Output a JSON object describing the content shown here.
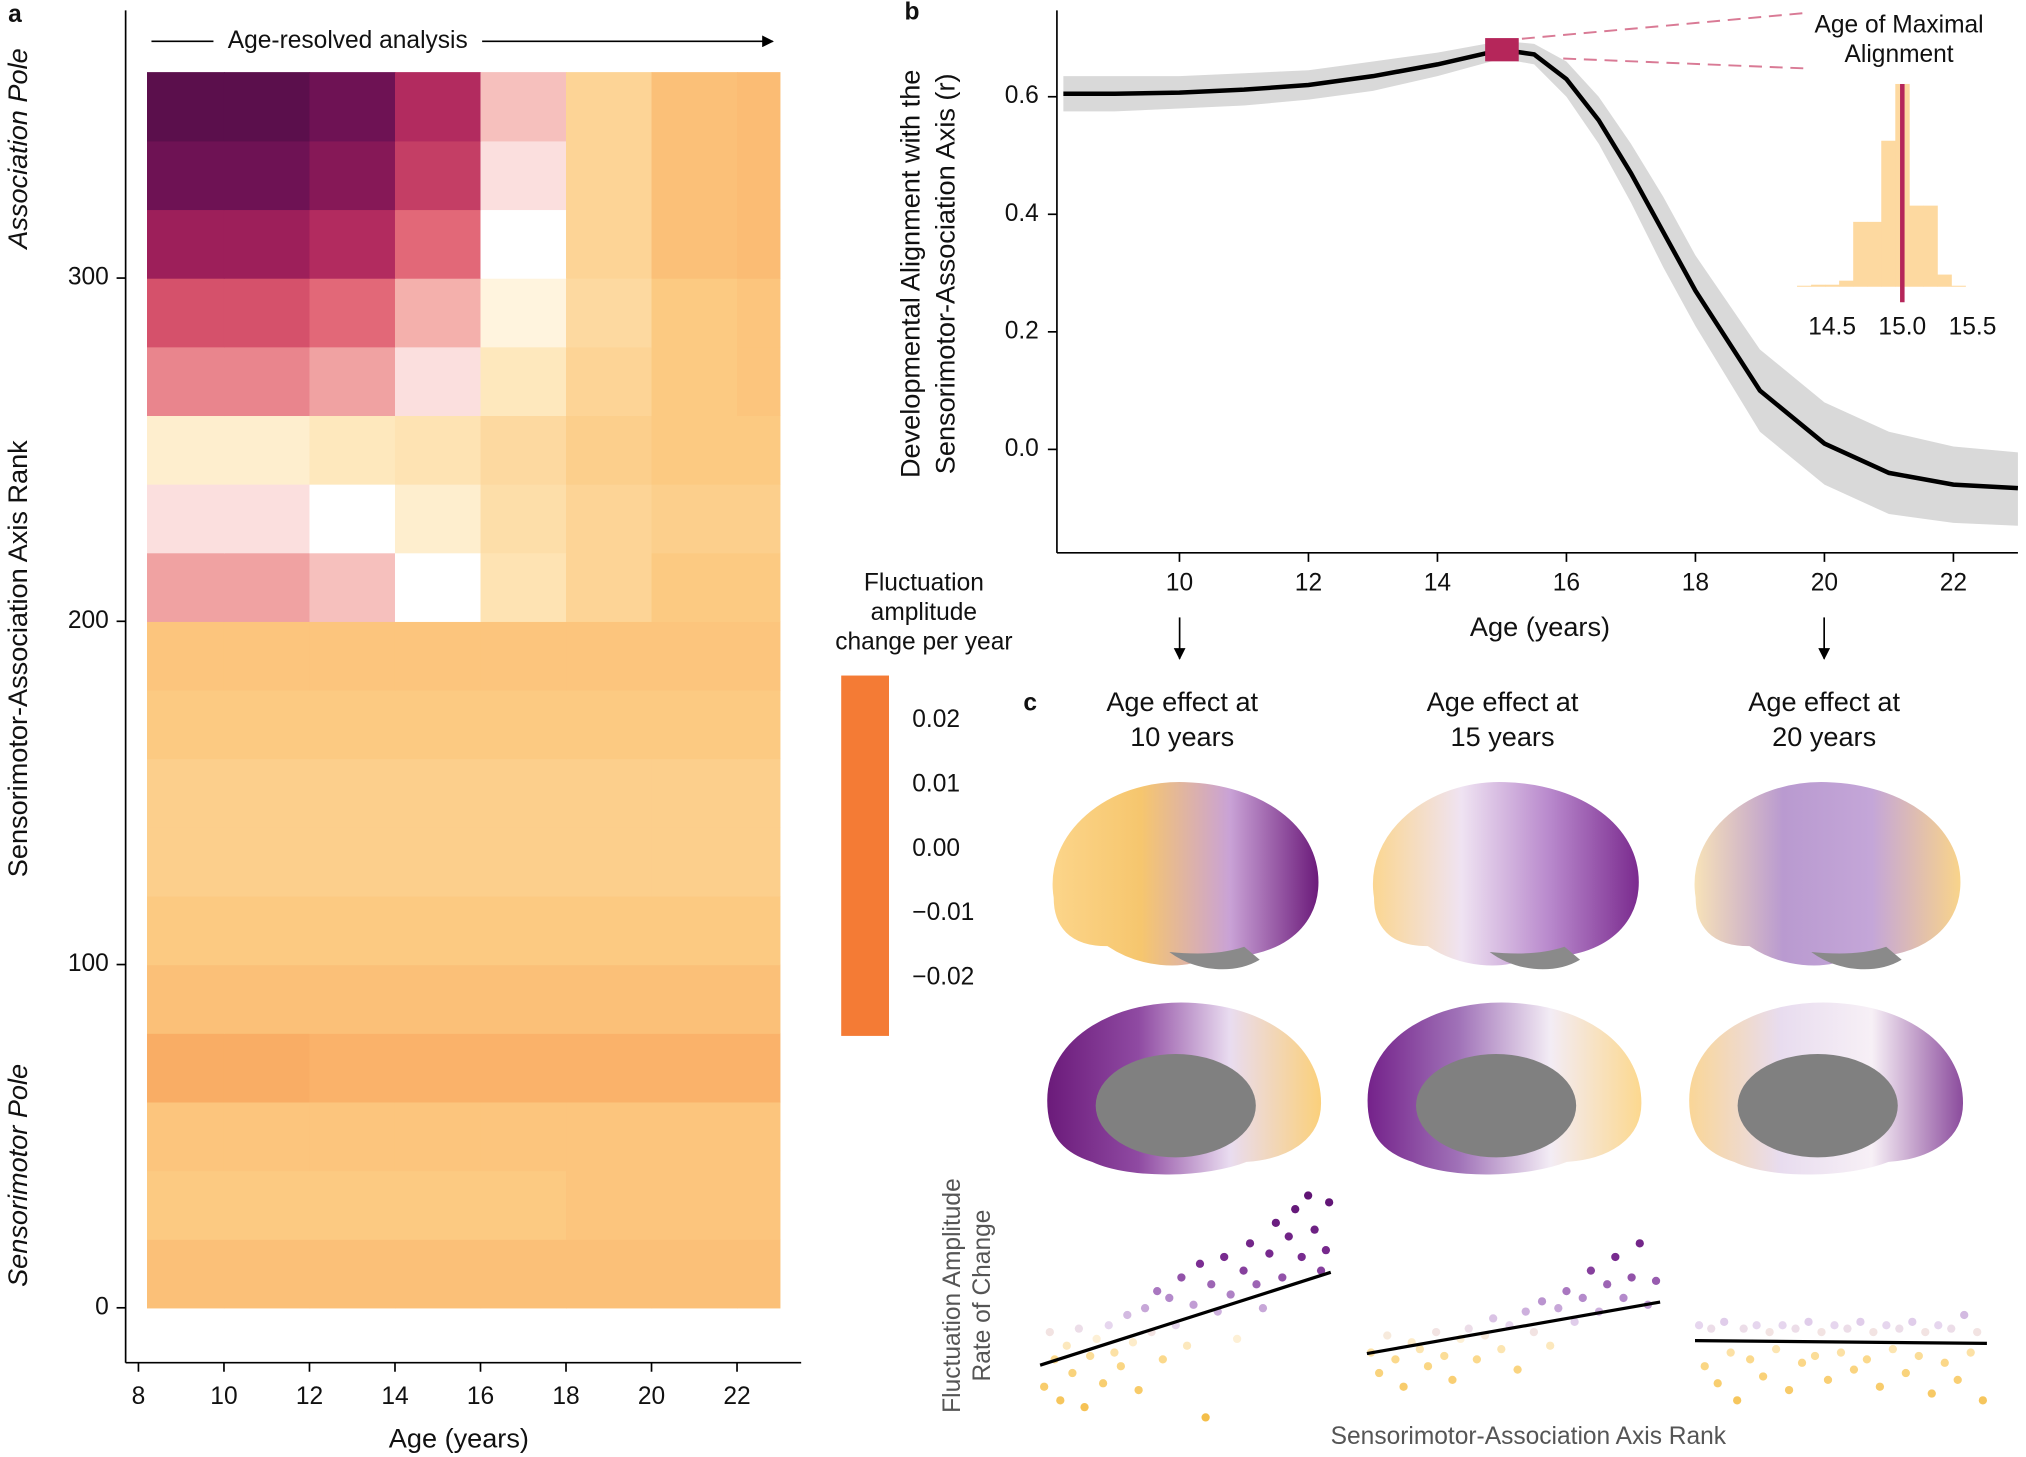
{
  "chart_data": [
    {
      "type": "heatmap",
      "panel": "a",
      "annotation": "Age-resolved analysis",
      "xlabel": "Age (years)",
      "ylabel": "Sensorimotor-Association Axis Rank",
      "pole_labels": [
        "Association Pole",
        "Sensorimotor Pole"
      ],
      "xlim": [
        7.7,
        23.5
      ],
      "ylim": [
        -16,
        378
      ],
      "xticks": [
        8,
        10,
        12,
        14,
        16,
        18,
        20,
        22
      ],
      "yticks": [
        0,
        100,
        200,
        300
      ],
      "x_edges": [
        8.2,
        10,
        12,
        14,
        16,
        18,
        20,
        22,
        23
      ],
      "y_edges": [
        0,
        20,
        40,
        60,
        80,
        100,
        120,
        140,
        160,
        180,
        200,
        220,
        240,
        260,
        280,
        300,
        320,
        340,
        360
      ],
      "values": [
        [
          -0.012,
          -0.012,
          -0.012,
          -0.012,
          -0.012,
          -0.012,
          -0.012,
          -0.012
        ],
        [
          -0.01,
          -0.01,
          -0.01,
          -0.01,
          -0.01,
          -0.011,
          -0.011,
          -0.011
        ],
        [
          -0.011,
          -0.011,
          -0.011,
          -0.011,
          -0.011,
          -0.011,
          -0.011,
          -0.011
        ],
        [
          -0.016,
          -0.016,
          -0.015,
          -0.015,
          -0.015,
          -0.015,
          -0.015,
          -0.015
        ],
        [
          -0.012,
          -0.012,
          -0.012,
          -0.012,
          -0.012,
          -0.012,
          -0.012,
          -0.012
        ],
        [
          -0.01,
          -0.01,
          -0.01,
          -0.01,
          -0.01,
          -0.01,
          -0.01,
          -0.01
        ],
        [
          -0.009,
          -0.009,
          -0.009,
          -0.009,
          -0.009,
          -0.009,
          -0.009,
          -0.009
        ],
        [
          -0.009,
          -0.009,
          -0.009,
          -0.009,
          -0.009,
          -0.009,
          -0.009,
          -0.009
        ],
        [
          -0.01,
          -0.01,
          -0.01,
          -0.01,
          -0.01,
          -0.01,
          -0.01,
          -0.01
        ],
        [
          -0.011,
          -0.011,
          -0.011,
          -0.011,
          -0.011,
          -0.011,
          -0.011,
          -0.011
        ],
        [
          0.006,
          0.006,
          0.004,
          0.0,
          -0.005,
          -0.008,
          -0.01,
          -0.01
        ],
        [
          0.002,
          0.002,
          0.0,
          -0.003,
          -0.006,
          -0.008,
          -0.009,
          -0.009
        ],
        [
          -0.003,
          -0.003,
          -0.004,
          -0.005,
          -0.007,
          -0.009,
          -0.01,
          -0.01
        ],
        [
          0.008,
          0.008,
          0.006,
          0.002,
          -0.004,
          -0.008,
          -0.01,
          -0.011
        ],
        [
          0.012,
          0.012,
          0.01,
          0.005,
          -0.002,
          -0.007,
          -0.01,
          -0.011
        ],
        [
          0.018,
          0.018,
          0.016,
          0.01,
          0.0,
          -0.008,
          -0.012,
          -0.013
        ],
        [
          0.022,
          0.022,
          0.02,
          0.014,
          0.002,
          -0.008,
          -0.012,
          -0.013
        ],
        [
          0.024,
          0.024,
          0.022,
          0.016,
          0.004,
          -0.008,
          -0.012,
          -0.013
        ]
      ],
      "colorscale": [
        [
          -0.029,
          "#f47b35"
        ],
        [
          -0.02,
          "#f79a52"
        ],
        [
          -0.01,
          "#fcca82"
        ],
        [
          -0.004,
          "#fee8bd"
        ],
        [
          0,
          "#ffffff"
        ],
        [
          0.005,
          "#f4b0ac"
        ],
        [
          0.011,
          "#de5a6e"
        ],
        [
          0.017,
          "#a9225c"
        ],
        [
          0.022,
          "#6e1254"
        ],
        [
          0.027,
          "#3f0a40"
        ]
      ],
      "colorbar": {
        "title": [
          "Fluctuation",
          "amplitude",
          "change per year"
        ],
        "lim": [
          -0.029,
          0.027
        ],
        "ticks": [
          0.02,
          0.01,
          {
            "value": 0,
            "label": "0.00"
          },
          {
            "value": -0.01,
            "label": "−0.01"
          },
          {
            "value": -0.02,
            "label": "−0.02"
          }
        ]
      }
    },
    {
      "type": "line",
      "panel": "b",
      "xlabel": "Age (years)",
      "ylabel": [
        "Developmental Alignment with the",
        "Sensorimotor-Association Axis (r)"
      ],
      "xlim": [
        8.1,
        23
      ],
      "ylim": [
        -0.176,
        0.747
      ],
      "xticks": [
        10,
        12,
        14,
        16,
        18,
        20,
        22
      ],
      "yticks": [
        {
          "value": 0,
          "label": "0.0"
        },
        0.2,
        0.4,
        0.6
      ],
      "x": [
        8.2,
        9,
        10,
        11,
        12,
        13,
        14,
        15,
        15.5,
        16,
        16.5,
        17,
        17.5,
        18,
        19,
        20,
        21,
        22,
        23
      ],
      "values": [
        0.605,
        0.605,
        0.607,
        0.612,
        0.62,
        0.635,
        0.655,
        0.68,
        0.672,
        0.63,
        0.56,
        0.47,
        0.37,
        0.27,
        0.1,
        0.01,
        -0.04,
        -0.06,
        -0.066
      ],
      "band_upper": [
        0.635,
        0.635,
        0.635,
        0.64,
        0.645,
        0.66,
        0.675,
        0.695,
        0.69,
        0.66,
        0.6,
        0.52,
        0.43,
        0.33,
        0.17,
        0.08,
        0.03,
        0.005,
        -0.005
      ],
      "band_lower": [
        0.575,
        0.575,
        0.58,
        0.585,
        0.595,
        0.61,
        0.635,
        0.665,
        0.655,
        0.6,
        0.52,
        0.42,
        0.31,
        0.21,
        0.03,
        -0.06,
        -0.11,
        -0.125,
        -0.13
      ],
      "color": "#000000",
      "band_color": "#d9d9d9",
      "peak": {
        "x": 15,
        "y": 0.68,
        "color": "#b5265a"
      }
    },
    {
      "type": "histogram",
      "title": [
        "Age of Maximal",
        "Alignment"
      ],
      "bins": [
        14.25,
        14.35,
        14.45,
        14.55,
        14.65,
        14.75,
        14.85,
        14.95,
        15.05,
        15.15,
        15.25,
        15.35,
        15.45
      ],
      "counts": [
        0.5,
        1,
        1,
        3,
        32,
        32,
        72,
        100,
        40,
        40,
        6,
        0.5
      ],
      "xlim": [
        14.25,
        15.75
      ],
      "ylim": [
        0,
        100
      ],
      "xticks": [
        14.5,
        {
          "value": 15,
          "label": "15.0"
        },
        15.5
      ],
      "color": "#fdd9a0",
      "vline": 15,
      "vline_color": "#b5265a"
    },
    {
      "type": "scatter",
      "panel": "c",
      "title": [
        "Age effect at",
        "10 years"
      ],
      "xlabel": "Sensorimotor-Association Axis Rank",
      "ylabel": [
        "Fluctuation Amplitude",
        "Rate of Change"
      ],
      "xlim": [
        0,
        360
      ],
      "ylim": [
        -0.03,
        0.04
      ],
      "x": [
        5,
        12,
        18,
        25,
        33,
        40,
        48,
        55,
        62,
        70,
        78,
        85,
        92,
        100,
        108,
        115,
        122,
        130,
        138,
        145,
        152,
        160,
        168,
        175,
        182,
        190,
        198,
        205,
        212,
        220,
        228,
        236,
        244,
        252,
        260,
        268,
        276,
        284,
        292,
        300,
        308,
        316,
        324,
        332,
        340,
        348,
        354,
        358
      ],
      "values": [
        -0.02,
        -0.004,
        -0.012,
        -0.024,
        -0.008,
        -0.016,
        -0.003,
        -0.026,
        -0.011,
        -0.006,
        -0.019,
        -0.002,
        -0.01,
        -0.014,
        0.001,
        -0.007,
        -0.021,
        0.003,
        -0.004,
        0.008,
        -0.012,
        0.006,
        -0.002,
        0.012,
        -0.008,
        0.004,
        0.016,
        -0.029,
        0.01,
        0.002,
        0.018,
        0.007,
        -0.006,
        0.014,
        0.022,
        0.01,
        0.003,
        0.019,
        0.028,
        0.012,
        0.024,
        0.032,
        0.018,
        0.036,
        0.026,
        0.014,
        0.02,
        0.034
      ],
      "fit": {
        "x": [
          0,
          360
        ],
        "values": [
          -0.0137,
          0.0135
        ]
      },
      "colorscale": [
        [
          -0.03,
          "#f4bc45"
        ],
        [
          -0.012,
          "#fbd98c"
        ],
        [
          -0.006,
          "#fdf0d6"
        ],
        [
          -0.002,
          "#e6d6ee"
        ],
        [
          0.006,
          "#b48acb"
        ],
        [
          0.016,
          "#7b2d92"
        ],
        [
          0.04,
          "#5a0f6e"
        ]
      ]
    },
    {
      "type": "scatter",
      "title": [
        "Age effect at",
        "15 years"
      ],
      "xlim": [
        0,
        360
      ],
      "ylim": [
        -0.03,
        0.04
      ],
      "x": [
        5,
        15,
        25,
        35,
        45,
        55,
        65,
        75,
        85,
        95,
        105,
        115,
        125,
        135,
        145,
        155,
        165,
        175,
        185,
        195,
        205,
        215,
        225,
        235,
        245,
        255,
        265,
        275,
        285,
        295,
        305,
        315,
        325,
        335,
        345,
        355
      ],
      "values": [
        -0.01,
        -0.016,
        -0.005,
        -0.012,
        -0.02,
        -0.007,
        -0.009,
        -0.014,
        -0.004,
        -0.011,
        -0.018,
        -0.006,
        -0.003,
        -0.012,
        -0.005,
        0.0,
        -0.009,
        -0.002,
        -0.015,
        0.002,
        -0.004,
        0.005,
        -0.008,
        0.003,
        0.008,
        -0.001,
        0.006,
        0.014,
        0.002,
        0.01,
        0.018,
        0.006,
        0.012,
        0.022,
        0.004,
        0.011
      ],
      "fit": {
        "x": [
          0,
          360
        ],
        "values": [
          -0.0103,
          0.0048
        ]
      },
      "colorscale": [
        [
          -0.03,
          "#f4bc45"
        ],
        [
          -0.012,
          "#fbd98c"
        ],
        [
          -0.006,
          "#fdf0d6"
        ],
        [
          -0.002,
          "#e6d6ee"
        ],
        [
          0.006,
          "#b48acb"
        ],
        [
          0.016,
          "#7b2d92"
        ],
        [
          0.04,
          "#5a0f6e"
        ]
      ]
    },
    {
      "type": "scatter",
      "title": [
        "Age effect at",
        "20 years"
      ],
      "xlim": [
        0,
        360
      ],
      "ylim": [
        -0.03,
        0.04
      ],
      "x": [
        5,
        12,
        20,
        28,
        36,
        44,
        52,
        60,
        68,
        76,
        84,
        92,
        100,
        108,
        116,
        124,
        132,
        140,
        148,
        156,
        164,
        172,
        180,
        188,
        196,
        204,
        212,
        220,
        228,
        236,
        244,
        252,
        260,
        268,
        276,
        284,
        292,
        300,
        308,
        316,
        324,
        332,
        340,
        348,
        355
      ],
      "values": [
        -0.002,
        -0.014,
        -0.003,
        -0.019,
        -0.001,
        -0.01,
        -0.024,
        -0.003,
        -0.012,
        -0.002,
        -0.017,
        -0.004,
        -0.009,
        -0.002,
        -0.021,
        -0.003,
        -0.013,
        -0.001,
        -0.011,
        -0.004,
        -0.018,
        -0.002,
        -0.01,
        -0.003,
        -0.015,
        -0.001,
        -0.012,
        -0.004,
        -0.02,
        -0.002,
        -0.009,
        -0.003,
        -0.016,
        -0.001,
        -0.011,
        -0.004,
        -0.022,
        -0.002,
        -0.013,
        -0.003,
        -0.018,
        0.001,
        -0.01,
        -0.004,
        -0.024
      ],
      "fit": {
        "x": [
          0,
          360
        ],
        "values": [
          -0.0065,
          -0.0073
        ]
      },
      "colorscale": [
        [
          -0.03,
          "#f4bc45"
        ],
        [
          -0.012,
          "#fbd98c"
        ],
        [
          -0.006,
          "#fdf0d6"
        ],
        [
          -0.002,
          "#e6d6ee"
        ],
        [
          0.006,
          "#b48acb"
        ],
        [
          0.016,
          "#7b2d92"
        ],
        [
          0.04,
          "#5a0f6e"
        ]
      ]
    }
  ]
}
